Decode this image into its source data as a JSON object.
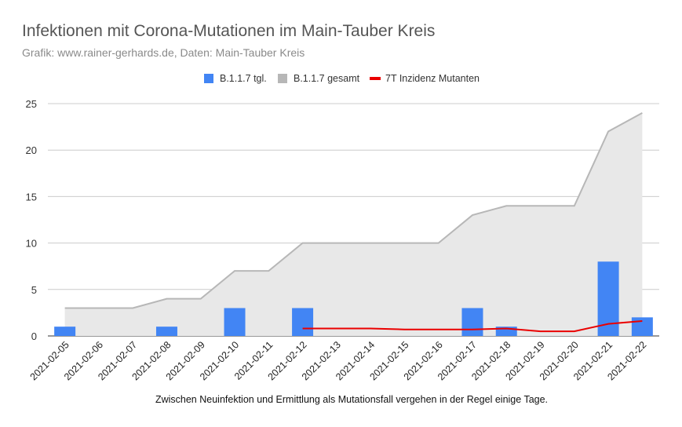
{
  "chart_data": {
    "type": "bar",
    "title": "Infektionen mit Corona-Mutationen im Main-Tauber Kreis",
    "subtitle": "Grafik: www.rainer-gerhards.de, Daten: Main-Tauber Kreis",
    "footnote": "Zwischen Neuinfektion und Ermittlung als Mutationsfall vergehen in der Regel einige Tage.",
    "legend_position": "top",
    "grid": true,
    "ylim": [
      0,
      25
    ],
    "y_ticks": [
      0,
      5,
      10,
      15,
      20,
      25
    ],
    "categories": [
      "2021-02-05",
      "2021-02-06",
      "2021-02-07",
      "2021-02-08",
      "2021-02-09",
      "2021-02-10",
      "2021-02-11",
      "2021-02-12",
      "2021-02-13",
      "2021-02-14",
      "2021-02-15",
      "2021-02-16",
      "2021-02-17",
      "2021-02-18",
      "2021-02-19",
      "2021-02-20",
      "2021-02-21",
      "2021-02-22"
    ],
    "series": [
      {
        "name": "B.1.1.7 tgl.",
        "type": "bar",
        "color": "#4285f4",
        "values": [
          1,
          0,
          0,
          1,
          0,
          3,
          0,
          3,
          0,
          0,
          0,
          0,
          3,
          1,
          0,
          0,
          8,
          2
        ]
      },
      {
        "name": "B.1.1.7 gesamt",
        "type": "area",
        "color": "#b7b7b7",
        "fill": "#e8e8e8",
        "values": [
          3,
          3,
          3,
          4,
          4,
          7,
          7,
          10,
          10,
          10,
          10,
          10,
          13,
          14,
          14,
          14,
          22,
          24
        ]
      },
      {
        "name": "7T Inzidenz Mutanten",
        "type": "line",
        "color": "#ea0000",
        "values": [
          null,
          null,
          null,
          null,
          null,
          null,
          null,
          0.8,
          0.8,
          0.8,
          0.7,
          0.7,
          0.7,
          0.8,
          0.5,
          0.5,
          1.3,
          1.6
        ]
      }
    ]
  }
}
